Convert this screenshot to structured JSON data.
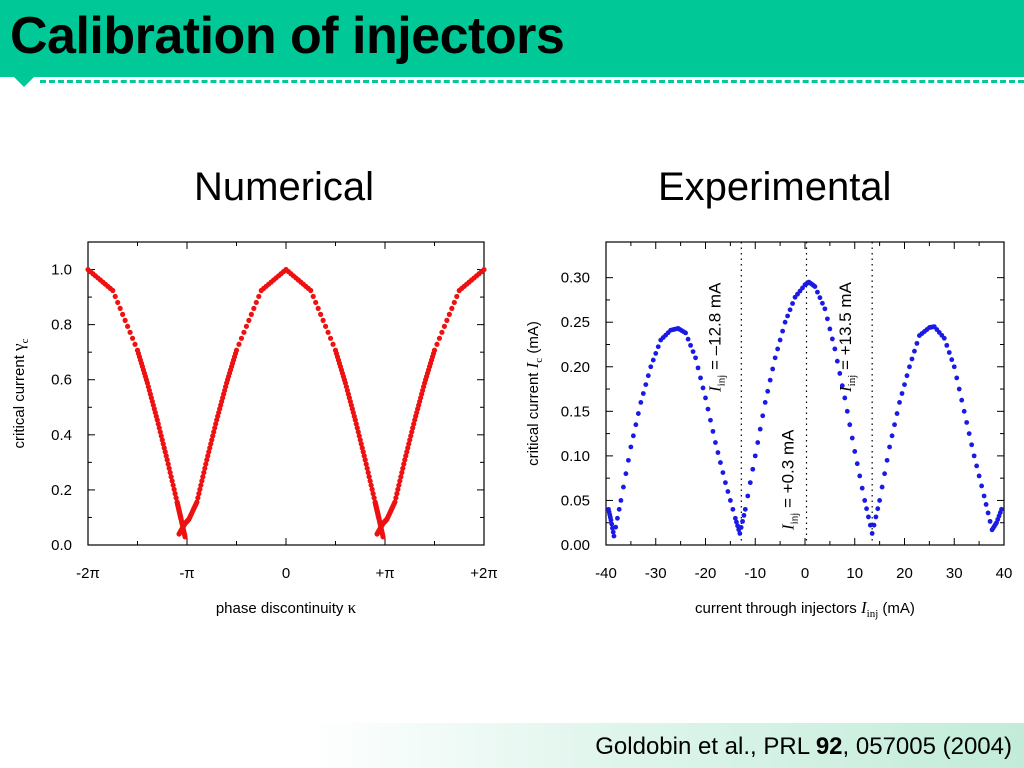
{
  "header": {
    "title": "Calibration of injectors",
    "accent": "#00c896"
  },
  "panels": {
    "numerical_title": "Numerical",
    "experimental_title": "Experimental"
  },
  "footer": {
    "authors": "Goldobin et al., ",
    "journal": "PRL ",
    "volume": "92",
    "article": ", 057005  (2004)"
  },
  "chart_data": [
    {
      "type": "scatter",
      "color": "#ee1111",
      "xlabel_text": "phase discontinuity ",
      "xlabel_symbol": "κ",
      "ylabel_text": "critical current ",
      "ylabel_symbol": "γ",
      "ylabel_sub": "c",
      "xlim": [
        -6.2832,
        6.2832
      ],
      "ylim": [
        0,
        1.1
      ],
      "xticks": [
        {
          "value": -6.2832,
          "label": "-2π"
        },
        {
          "value": -3.1416,
          "label": "-π"
        },
        {
          "value": 0,
          "label": "0"
        },
        {
          "value": 3.1416,
          "label": "+π"
        },
        {
          "value": 6.2832,
          "label": "+2π"
        }
      ],
      "yticks": [
        {
          "value": 0.0,
          "label": "0.0"
        },
        {
          "value": 0.2,
          "label": "0.2"
        },
        {
          "value": 0.4,
          "label": "0.4"
        },
        {
          "value": 0.6,
          "label": "0.6"
        },
        {
          "value": 0.8,
          "label": "0.8"
        },
        {
          "value": 1.0,
          "label": "1.0"
        }
      ],
      "series": [
        {
          "x": [
            -6.2832,
            -5.4978,
            -4.7124,
            -4.3982,
            -4.0841,
            -3.7699,
            -3.4558,
            -3.3929,
            -3.3301,
            -3.2044
          ],
          "y": [
            1.0,
            0.924,
            0.707,
            0.588,
            0.454,
            0.309,
            0.156,
            0.125,
            0.094,
            0.03
          ]
        },
        {
          "x": [
            -3.3929,
            -3.2044,
            -3.0788,
            -2.8274,
            -2.5133,
            -2.1991,
            -1.885,
            -1.5708,
            -0.7854,
            0
          ],
          "y": [
            0.04,
            0.078,
            0.094,
            0.156,
            0.309,
            0.454,
            0.588,
            0.707,
            0.924,
            1.0
          ]
        },
        {
          "x": [
            0,
            0.7854,
            1.5708,
            1.885,
            2.1991,
            2.5133,
            2.8274,
            2.8903,
            2.9531,
            3.0788
          ],
          "y": [
            1.0,
            0.924,
            0.707,
            0.588,
            0.454,
            0.309,
            0.156,
            0.125,
            0.094,
            0.03
          ]
        },
        {
          "x": [
            2.8903,
            3.0788,
            3.2044,
            3.4558,
            3.7699,
            4.0841,
            4.3982,
            4.7124,
            5.4978,
            6.2832
          ],
          "y": [
            0.04,
            0.078,
            0.094,
            0.156,
            0.309,
            0.454,
            0.588,
            0.707,
            0.924,
            1.0
          ]
        }
      ]
    },
    {
      "type": "scatter",
      "color": "#1a1ae6",
      "xlabel_text": "current through injectors ",
      "xlabel_symbol": "I",
      "xlabel_sub": "inj",
      "xlabel_unit": " (mA)",
      "ylabel_text": "critical current ",
      "ylabel_symbol": "I",
      "ylabel_sub": "c",
      "ylabel_unit": " (mA)",
      "xlim": [
        -40,
        40
      ],
      "ylim": [
        0,
        0.34
      ],
      "xticks": [
        {
          "value": -40,
          "label": "-40"
        },
        {
          "value": -30,
          "label": "-30"
        },
        {
          "value": -20,
          "label": "-20"
        },
        {
          "value": -10,
          "label": "-10"
        },
        {
          "value": 0,
          "label": "0"
        },
        {
          "value": 10,
          "label": "10"
        },
        {
          "value": 20,
          "label": "20"
        },
        {
          "value": 30,
          "label": "30"
        },
        {
          "value": 40,
          "label": "40"
        }
      ],
      "yticks": [
        {
          "value": 0.0,
          "label": "0.00"
        },
        {
          "value": 0.05,
          "label": "0.05"
        },
        {
          "value": 0.1,
          "label": "0.10"
        },
        {
          "value": 0.15,
          "label": "0.15"
        },
        {
          "value": 0.2,
          "label": "0.20"
        },
        {
          "value": 0.25,
          "label": "0.25"
        },
        {
          "value": 0.3,
          "label": "0.30"
        }
      ],
      "series": [
        {
          "x": [
            -39.5,
            -39,
            -38.4,
            -37,
            -35,
            -33,
            -31,
            -29,
            -27,
            -25.5,
            -24,
            -22,
            -20,
            -18,
            -16,
            -14,
            -13.1,
            -12,
            -10,
            -8,
            -6,
            -4,
            -2,
            0,
            0.8,
            2,
            4,
            6,
            8,
            10,
            12,
            13.5,
            15,
            17,
            19,
            21,
            23,
            25,
            26,
            28,
            30,
            32,
            34,
            36,
            37.6,
            38.5,
            39.5
          ],
          "y": [
            0.04,
            0.028,
            0.01,
            0.05,
            0.11,
            0.16,
            0.2,
            0.23,
            0.241,
            0.243,
            0.238,
            0.21,
            0.165,
            0.115,
            0.07,
            0.03,
            0.013,
            0.04,
            0.1,
            0.16,
            0.21,
            0.25,
            0.278,
            0.292,
            0.295,
            0.29,
            0.265,
            0.22,
            0.165,
            0.105,
            0.05,
            0.013,
            0.05,
            0.11,
            0.16,
            0.2,
            0.235,
            0.244,
            0.245,
            0.232,
            0.2,
            0.15,
            0.1,
            0.055,
            0.017,
            0.025,
            0.04
          ]
        }
      ],
      "markers": [
        {
          "x": -12.8,
          "label_main": "I",
          "label_sub": "inj",
          "label_rest": " = –12.8 mA"
        },
        {
          "x": 0.3,
          "label_main": "I",
          "label_sub": "inj",
          "label_rest": " = +0.3 mA"
        },
        {
          "x": 13.5,
          "label_main": "I",
          "label_sub": "inj",
          "label_rest": " = +13.5 mA"
        }
      ]
    }
  ]
}
